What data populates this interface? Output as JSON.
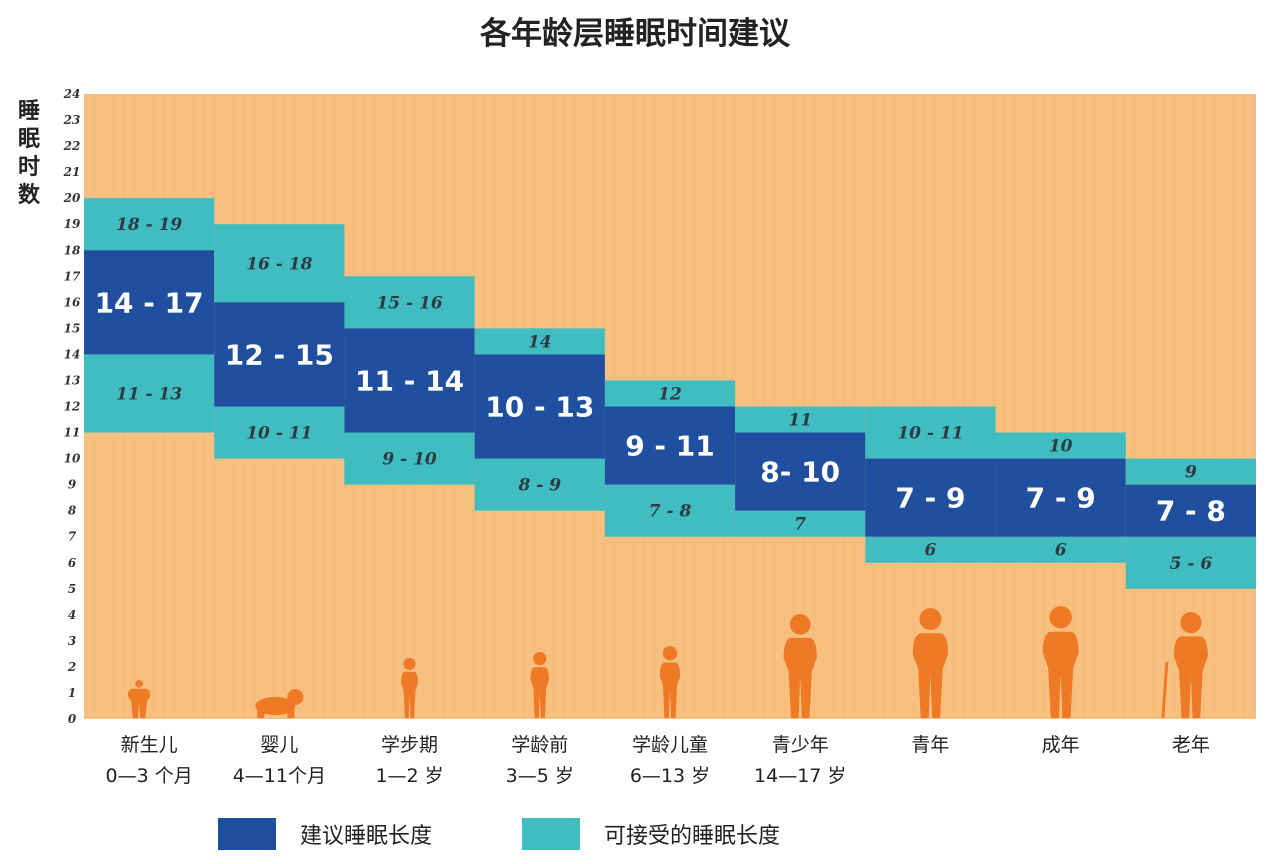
{
  "chart_data": {
    "type": "bar",
    "title": "各年龄层睡眠时间建议",
    "ylabel": "睡眠时数",
    "ylim": [
      0,
      24
    ],
    "yticks": [
      0,
      1,
      2,
      3,
      4,
      5,
      6,
      7,
      8,
      9,
      10,
      11,
      12,
      13,
      14,
      15,
      16,
      17,
      18,
      19,
      20,
      21,
      22,
      23,
      24
    ],
    "grid": true,
    "legend_position": "bottom",
    "categories": [
      {
        "name": "新生儿",
        "range": "0—3 个月"
      },
      {
        "name": "婴儿",
        "range": "4—11个月"
      },
      {
        "name": "学步期",
        "range": "1—2 岁"
      },
      {
        "name": "学龄前",
        "range": "3—5 岁"
      },
      {
        "name": "学龄儿童",
        "range": "6—13 岁"
      },
      {
        "name": "青少年",
        "range": "14—17 岁"
      },
      {
        "name": "青年",
        "range": ""
      },
      {
        "name": "成年",
        "range": ""
      },
      {
        "name": "老年",
        "range": ""
      }
    ],
    "series": [
      {
        "name": "建议睡眠长度",
        "color": "#1f4f9e",
        "values": [
          [
            14,
            18
          ],
          [
            12,
            16
          ],
          [
            11,
            15
          ],
          [
            10,
            14
          ],
          [
            9,
            12
          ],
          [
            8,
            11
          ],
          [
            7,
            10
          ],
          [
            7,
            10
          ],
          [
            7,
            9
          ]
        ],
        "labels": [
          "14 - 17",
          "12 - 15",
          "11 - 14",
          "10 - 13",
          "9 - 11",
          "8- 10",
          "7 - 9",
          "7 - 9",
          "7 - 8"
        ]
      },
      {
        "name": "可接受的睡眠长度",
        "color": "#3fbdc1",
        "upper": [
          [
            18,
            20
          ],
          [
            16,
            19
          ],
          [
            15,
            17
          ],
          [
            14,
            15
          ],
          [
            12,
            13
          ],
          [
            11,
            12
          ],
          [
            10,
            12
          ],
          [
            10,
            11
          ],
          [
            9,
            10
          ]
        ],
        "upper_labels": [
          "18 - 19",
          "16 - 18",
          "15 - 16",
          "14",
          "12",
          "11",
          "10 - 11",
          "10",
          "9"
        ],
        "lower": [
          [
            11,
            14
          ],
          [
            10,
            12
          ],
          [
            9,
            11
          ],
          [
            8,
            10
          ],
          [
            7,
            9
          ],
          [
            7,
            8
          ],
          [
            6,
            7
          ],
          [
            6,
            7
          ],
          [
            5,
            7
          ]
        ],
        "lower_labels": [
          "11 - 13",
          "10 - 11",
          "9 - 10",
          "8 - 9",
          "7 - 8",
          "7",
          "6",
          "6",
          "5 - 6"
        ]
      }
    ],
    "colors": {
      "background": "#f7bf80",
      "recommended": "#1f4f9e",
      "acceptable": "#3fbdc1",
      "silhouette": "#ef7a26"
    },
    "silhouettes": [
      "newborn-icon",
      "crawling-baby-icon",
      "toddler-icon",
      "preschooler-icon",
      "child-icon",
      "teen-icon",
      "young-adult-icon",
      "adult-icon",
      "elderly-icon"
    ]
  }
}
